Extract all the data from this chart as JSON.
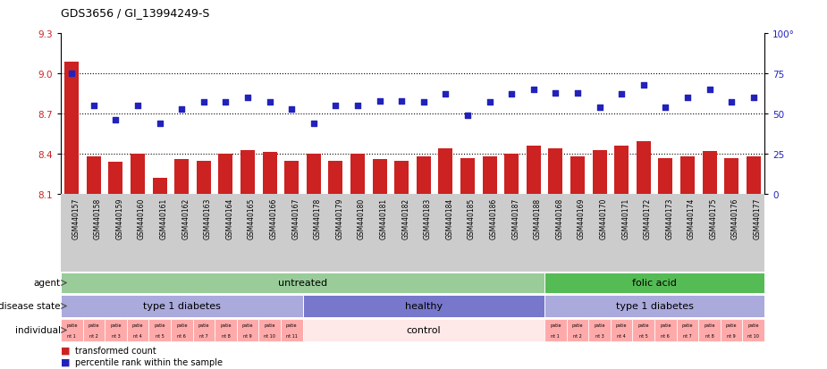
{
  "title": "GDS3656 / GI_13994249-S",
  "samples": [
    "GSM440157",
    "GSM440158",
    "GSM440159",
    "GSM440160",
    "GSM440161",
    "GSM440162",
    "GSM440163",
    "GSM440164",
    "GSM440165",
    "GSM440166",
    "GSM440167",
    "GSM440178",
    "GSM440179",
    "GSM440180",
    "GSM440181",
    "GSM440182",
    "GSM440183",
    "GSM440184",
    "GSM440185",
    "GSM440186",
    "GSM440187",
    "GSM440188",
    "GSM440168",
    "GSM440169",
    "GSM440170",
    "GSM440171",
    "GSM440172",
    "GSM440173",
    "GSM440174",
    "GSM440175",
    "GSM440176",
    "GSM440177"
  ],
  "bar_values": [
    9.09,
    8.38,
    8.34,
    8.4,
    8.22,
    8.36,
    8.35,
    8.4,
    8.43,
    8.41,
    8.35,
    8.4,
    8.35,
    8.4,
    8.36,
    8.35,
    8.38,
    8.44,
    8.37,
    8.38,
    8.4,
    8.46,
    8.44,
    8.38,
    8.43,
    8.46,
    8.49,
    8.37,
    8.38,
    8.42,
    8.37,
    8.38
  ],
  "dot_values_pct": [
    75,
    55,
    46,
    55,
    44,
    53,
    57,
    57,
    60,
    57,
    53,
    44,
    55,
    55,
    58,
    58,
    57,
    62,
    49,
    57,
    62,
    65,
    63,
    63,
    54,
    62,
    68,
    54,
    60,
    65,
    57,
    60
  ],
  "bar_color": "#cc2222",
  "dot_color": "#2222bb",
  "ylim_left": [
    8.1,
    9.3
  ],
  "ylim_right": [
    0,
    100
  ],
  "yticks_left": [
    8.1,
    8.4,
    8.7,
    9.0,
    9.3
  ],
  "yticks_right": [
    0,
    25,
    50,
    75,
    100
  ],
  "hlines": [
    9.0,
    8.7,
    8.4
  ],
  "bar_width": 0.65,
  "row_colors": {
    "agent_untreated": "#99cc99",
    "agent_folicacid": "#55bb55",
    "disease_t1d": "#aaaadd",
    "disease_healthy": "#7777cc",
    "individual_patient": "#ffaaaa",
    "individual_control": "#ffe8e8"
  },
  "legend_red": "#cc2222",
  "legend_blue": "#2222bb",
  "xtick_bg": "#cccccc",
  "left_label_color": "#444444"
}
